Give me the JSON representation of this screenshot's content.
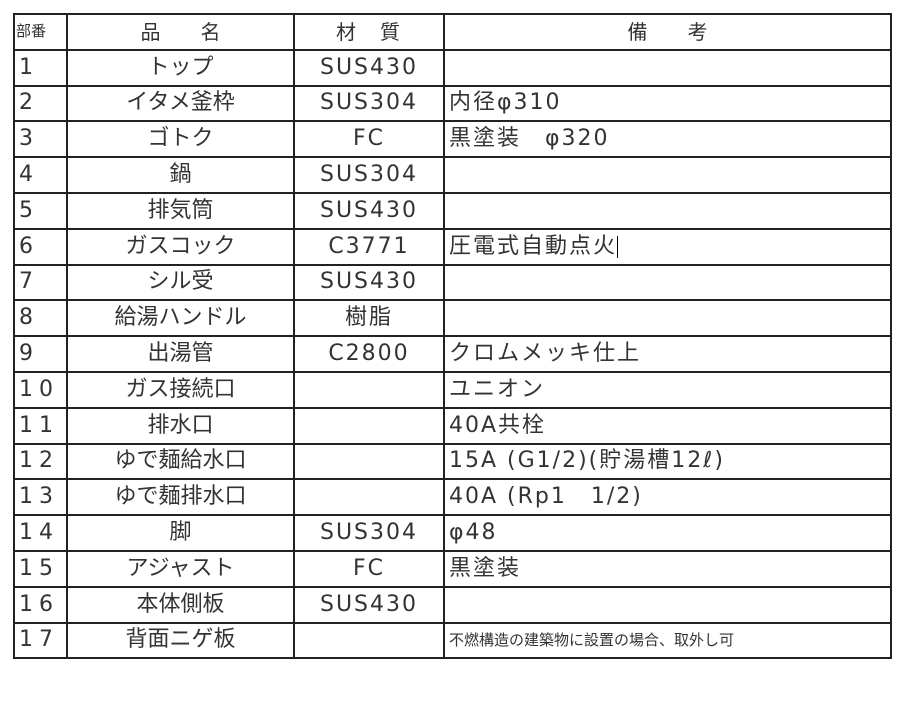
{
  "header": {
    "no": "部番",
    "name": "品　　名",
    "material": "材　質",
    "remarks": "備　　考"
  },
  "rows": [
    {
      "no": "1",
      "name": "トップ",
      "material": "SUS430",
      "remarks": ""
    },
    {
      "no": "2",
      "name": "イタメ釜枠",
      "material": "SUS304",
      "remarks": "内径φ310"
    },
    {
      "no": "3",
      "name": "ゴトク",
      "material": "FC",
      "remarks": "黒塗装　φ320"
    },
    {
      "no": "4",
      "name": "鍋",
      "material": "SUS304",
      "remarks": ""
    },
    {
      "no": "5",
      "name": "排気筒",
      "material": "SUS430",
      "remarks": ""
    },
    {
      "no": "6",
      "name": "ガスコック",
      "material": "C3771",
      "remarks": "圧電式自動点火"
    },
    {
      "no": "7",
      "name": "シル受",
      "material": "SUS430",
      "remarks": ""
    },
    {
      "no": "8",
      "name": "給湯ハンドル",
      "material": "樹脂",
      "remarks": ""
    },
    {
      "no": "9",
      "name": "出湯管",
      "material": "C2800",
      "remarks": "クロムメッキ仕上"
    },
    {
      "no": "10",
      "name": "ガス接続口",
      "material": "",
      "remarks": "ユニオン"
    },
    {
      "no": "11",
      "name": "排水口",
      "material": "",
      "remarks": "40A共栓"
    },
    {
      "no": "12",
      "name": "ゆで麺給水口",
      "material": "",
      "remarks": "15A (G1/2)(貯湯槽12ℓ)"
    },
    {
      "no": "13",
      "name": "ゆで麺排水口",
      "material": "",
      "remarks": "40A (Rp1　1/2)"
    },
    {
      "no": "14",
      "name": "脚",
      "material": "SUS304",
      "remarks": "φ48"
    },
    {
      "no": "15",
      "name": "アジャスト",
      "material": "FC",
      "remarks": "黒塗装"
    },
    {
      "no": "16",
      "name": "本体側板",
      "material": "SUS430",
      "remarks": ""
    },
    {
      "no": "17",
      "name": "背面ニゲ板",
      "material": "",
      "remarks": "不燃構造の建築物に設置の場合、取外し可"
    }
  ]
}
